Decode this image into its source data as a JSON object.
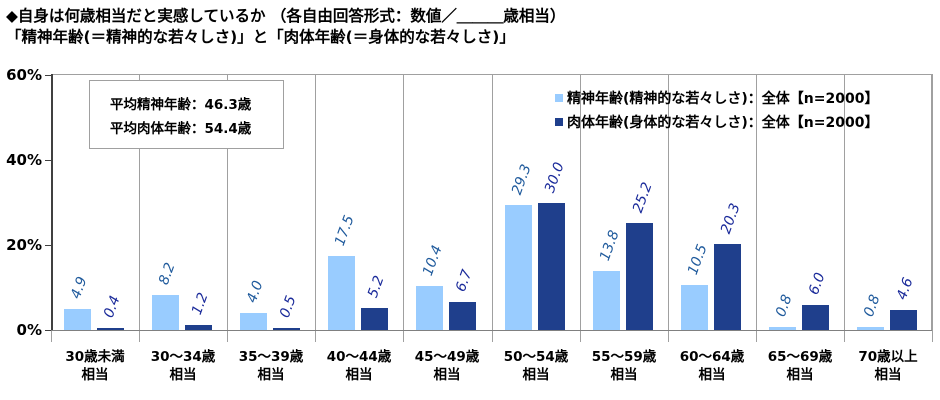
{
  "title": {
    "line1": "◆自身は何歳相当だと実感しているか （各自由回答形式：数値／＿＿＿歳相当）",
    "line2": "「精神年齢(＝精神的な若々しさ)」と「肉体年齢(＝身体的な若々しさ)」"
  },
  "average_box": {
    "mental": "平均精神年齢：46.3歳",
    "physical": "平均肉体年齢：54.4歳"
  },
  "legend": [
    {
      "label": "精神年齢(精神的な若々しさ)：全体【n=2000】",
      "color": "#99CCFF"
    },
    {
      "label": "肉体年齢(身体的な若々しさ)：全体【n=2000】",
      "color": "#1F3F8C"
    }
  ],
  "colors": {
    "mental_bar": "#99CCFF",
    "physical_bar": "#1F3F8C",
    "mental_label": "#1F5A9C",
    "physical_label": "#1A2A9A"
  },
  "chart_data": {
    "type": "bar",
    "title": "自身は何歳相当だと実感しているか（各自由回答形式：数値／＿＿＿歳相当）「精神年齢(＝精神的な若々しさ)」と「肉体年齢(＝身体的な若々しさ)」",
    "categories": [
      "30歳未満相当",
      "30～34歳相当",
      "35～39歳相当",
      "40～44歳相当",
      "45～49歳相当",
      "50～54歳相当",
      "55～59歳相当",
      "60～64歳相当",
      "65～69歳相当",
      "70歳以上相当"
    ],
    "category_lines": [
      [
        "30歳未満",
        "相当"
      ],
      [
        "30～34歳",
        "相当"
      ],
      [
        "35～39歳",
        "相当"
      ],
      [
        "40～44歳",
        "相当"
      ],
      [
        "45～49歳",
        "相当"
      ],
      [
        "50～54歳",
        "相当"
      ],
      [
        "55～59歳",
        "相当"
      ],
      [
        "60～64歳",
        "相当"
      ],
      [
        "65～69歳",
        "相当"
      ],
      [
        "70歳以上",
        "相当"
      ]
    ],
    "series": [
      {
        "name": "精神年齢(精神的な若々しさ)：全体【n=2000】",
        "values": [
          4.9,
          8.2,
          4.0,
          17.5,
          10.4,
          29.3,
          13.8,
          10.5,
          0.8,
          0.8
        ],
        "labels": [
          "4.9",
          "8.2",
          "4.0",
          "17.5",
          "10.4",
          "29.3",
          "13.8",
          "10.5",
          "0.8",
          "0.8"
        ]
      },
      {
        "name": "肉体年齢(身体的な若々しさ)：全体【n=2000】",
        "values": [
          0.4,
          1.2,
          0.5,
          5.2,
          6.7,
          30.0,
          25.2,
          20.3,
          6.0,
          4.6
        ],
        "labels": [
          "0.4",
          "1.2",
          "0.5",
          "5.2",
          "6.7",
          "30.0",
          "25.2",
          "20.3",
          "6.0",
          "4.6"
        ]
      }
    ],
    "yticks": [
      "0%",
      "20%",
      "40%",
      "60%"
    ],
    "ylim": [
      0,
      60
    ],
    "xlabel": "",
    "ylabel": "",
    "grid": "vertical category separators",
    "legend_position": "upper right inside plot",
    "annotations": [
      "平均精神年齢：46.3歳",
      "平均肉体年齢：54.4歳"
    ]
  }
}
